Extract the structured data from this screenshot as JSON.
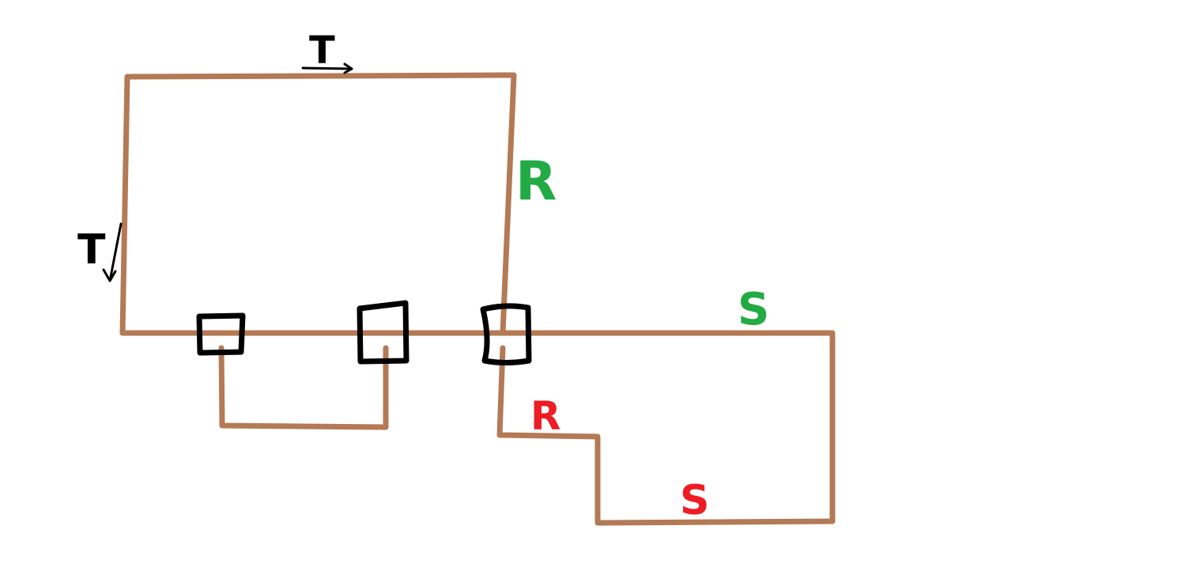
{
  "colors": {
    "wire": "#b37a55",
    "box": "#000000",
    "label_black": "#000000",
    "label_green": "#22aa44",
    "label_red": "#ee1c24"
  },
  "labels": {
    "t_top": "T",
    "t_left": "T",
    "r_green": "R",
    "s_green": "S",
    "r_red": "R",
    "s_red": "S"
  }
}
